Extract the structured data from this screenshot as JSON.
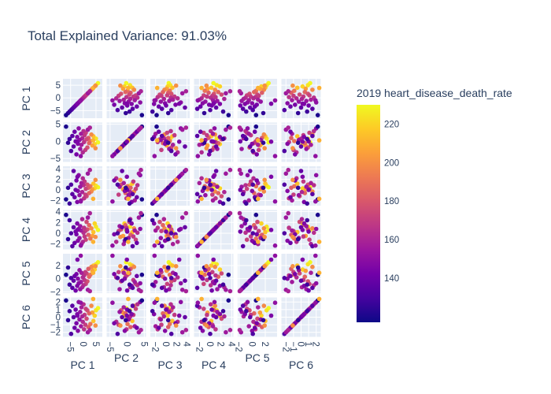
{
  "chart_data": {
    "type": "scatter",
    "subtype": "scatter-matrix",
    "title": "Total Explained Variance: 91.03%",
    "dimensions": [
      "PC 1",
      "PC 2",
      "PC 3",
      "PC 4",
      "PC 5",
      "PC 6"
    ],
    "axis_ranges": [
      [
        -8,
        7.5
      ],
      [
        -6,
        5.5
      ],
      [
        -3,
        4.5
      ],
      [
        -3,
        4.3
      ],
      [
        -2.2,
        3.8
      ],
      [
        -2.6,
        2.6
      ]
    ],
    "axis_ticks": [
      [
        -5,
        0,
        5
      ],
      [
        -5,
        0,
        5
      ],
      [
        -2,
        0,
        2,
        4
      ],
      [
        -2,
        0,
        2,
        4
      ],
      [
        -2,
        0,
        2
      ],
      [
        -2,
        -1,
        0,
        1,
        2
      ]
    ],
    "grid": true,
    "background": "#E5ECF6",
    "colorbar": {
      "title": "2019 heart_disease_death_rate",
      "range": [
        117,
        230
      ],
      "ticks": [
        140,
        160,
        180,
        200,
        220
      ],
      "colorscale": [
        "#0d0887",
        "#46039f",
        "#7201a8",
        "#9c179e",
        "#bd3786",
        "#d8576b",
        "#ed7953",
        "#fb9f3a",
        "#fdca26",
        "#f0f921"
      ],
      "placement": "right"
    },
    "points": [
      {
        "pc": [
          5.8,
          -0.3,
          0.5,
          0.6,
          2.5,
          1.2
        ],
        "c": 230
      },
      {
        "pc": [
          5.0,
          0.8,
          0.8,
          1.2,
          2.2,
          0.9
        ],
        "c": 225
      },
      {
        "pc": [
          4.5,
          -0.8,
          0.3,
          1.8,
          1.4,
          0.2
        ],
        "c": 220
      },
      {
        "pc": [
          4.0,
          1.5,
          1.2,
          0.2,
          2.0,
          -0.5
        ],
        "c": 215
      },
      {
        "pc": [
          3.6,
          -1.2,
          0.1,
          -0.5,
          1.2,
          0.6
        ],
        "c": 205
      },
      {
        "pc": [
          3.2,
          2.0,
          -0.3,
          0.9,
          1.8,
          1.5
        ],
        "c": 198
      },
      {
        "pc": [
          2.8,
          0.1,
          0.7,
          -1.0,
          0.6,
          -0.9
        ],
        "c": 190
      },
      {
        "pc": [
          2.3,
          -0.5,
          -0.6,
          1.5,
          0.3,
          0.5
        ],
        "c": 185
      },
      {
        "pc": [
          2.0,
          1.0,
          0.4,
          -0.3,
          1.5,
          -1.3
        ],
        "c": 182
      },
      {
        "pc": [
          1.6,
          -1.8,
          1.0,
          0.7,
          -0.4,
          0.9
        ],
        "c": 178
      },
      {
        "pc": [
          1.3,
          0.6,
          -1.2,
          2.1,
          0.8,
          -0.2
        ],
        "c": 175
      },
      {
        "pc": [
          1.0,
          2.5,
          0.2,
          -1.2,
          -0.8,
          1.1
        ],
        "c": 172
      },
      {
        "pc": [
          0.8,
          -2.5,
          -0.9,
          0.4,
          1.0,
          -1.0
        ],
        "c": 170
      },
      {
        "pc": [
          0.5,
          1.8,
          1.6,
          -0.6,
          -0.2,
          0.3
        ],
        "c": 168
      },
      {
        "pc": [
          0.3,
          -0.2,
          -1.6,
          1.0,
          0.5,
          -1.6
        ],
        "c": 166
      },
      {
        "pc": [
          0.1,
          3.0,
          0.9,
          0.1,
          -1.0,
          1.7
        ],
        "c": 164
      },
      {
        "pc": [
          -0.2,
          -3.2,
          2.2,
          -1.6,
          0.2,
          -0.6
        ],
        "c": 162
      },
      {
        "pc": [
          -0.4,
          0.9,
          -0.4,
          2.6,
          -1.3,
          0.1
        ],
        "c": 160
      },
      {
        "pc": [
          -0.7,
          -1.0,
          1.3,
          -2.0,
          0.9,
          1.3
        ],
        "c": 158
      },
      {
        "pc": [
          -0.9,
          2.2,
          -2.0,
          0.5,
          -0.5,
          -1.2
        ],
        "c": 156
      },
      {
        "pc": [
          -1.2,
          -2.2,
          0.6,
          1.3,
          -1.6,
          0.7
        ],
        "c": 154
      },
      {
        "pc": [
          -1.5,
          0.4,
          -1.0,
          -0.9,
          1.3,
          -0.3
        ],
        "c": 152
      },
      {
        "pc": [
          -1.8,
          3.8,
          2.8,
          0.8,
          -0.7,
          2.0
        ],
        "c": 150
      },
      {
        "pc": [
          -2.1,
          -0.7,
          -0.2,
          -1.4,
          0.0,
          -1.8
        ],
        "c": 148
      },
      {
        "pc": [
          -2.4,
          1.3,
          -2.3,
          1.8,
          -1.1,
          0.4
        ],
        "c": 146
      },
      {
        "pc": [
          -2.7,
          -3.8,
          1.8,
          -0.2,
          0.7,
          -0.8
        ],
        "c": 144
      },
      {
        "pc": [
          -3.0,
          0.0,
          0.0,
          0.3,
          -1.8,
          1.0
        ],
        "c": 142
      },
      {
        "pc": [
          -3.4,
          2.8,
          -1.4,
          -1.8,
          0.4,
          -1.4
        ],
        "c": 140
      },
      {
        "pc": [
          -3.8,
          -1.5,
          3.6,
          1.1,
          -0.3,
          0.0
        ],
        "c": 138
      },
      {
        "pc": [
          -4.3,
          1.6,
          -0.8,
          -2.4,
          -1.4,
          1.5
        ],
        "c": 135
      },
      {
        "pc": [
          -4.8,
          -2.8,
          1.0,
          0.0,
          0.1,
          -2.2
        ],
        "c": 132
      },
      {
        "pc": [
          -5.4,
          0.7,
          -2.6,
          2.4,
          -0.9,
          0.8
        ],
        "c": 128
      },
      {
        "pc": [
          -6.0,
          -0.4,
          0.4,
          -1.1,
          1.7,
          -0.4
        ],
        "c": 125
      },
      {
        "pc": [
          -6.8,
          4.3,
          -1.8,
          3.4,
          0.6,
          2.2
        ],
        "c": 120
      },
      {
        "pc": [
          1.8,
          3.4,
          3.1,
          2.9,
          -1.7,
          -2.0
        ],
        "c": 155
      },
      {
        "pc": [
          -1.0,
          -4.3,
          -2.2,
          -2.3,
          3.5,
          1.9
        ],
        "c": 151
      },
      {
        "pc": [
          2.6,
          4.0,
          3.8,
          3.7,
          -1.9,
          -1.7
        ],
        "c": 159
      },
      {
        "pc": [
          3.9,
          0.3,
          -1.7,
          -1.6,
          0.9,
          2.4
        ],
        "c": 210
      },
      {
        "pc": [
          4.8,
          -2.0,
          1.9,
          -0.7,
          1.9,
          -1.1
        ],
        "c": 200
      },
      {
        "pc": [
          -2.3,
          -0.1,
          2.5,
          0.6,
          2.9,
          0.2
        ],
        "c": 145
      }
    ]
  }
}
